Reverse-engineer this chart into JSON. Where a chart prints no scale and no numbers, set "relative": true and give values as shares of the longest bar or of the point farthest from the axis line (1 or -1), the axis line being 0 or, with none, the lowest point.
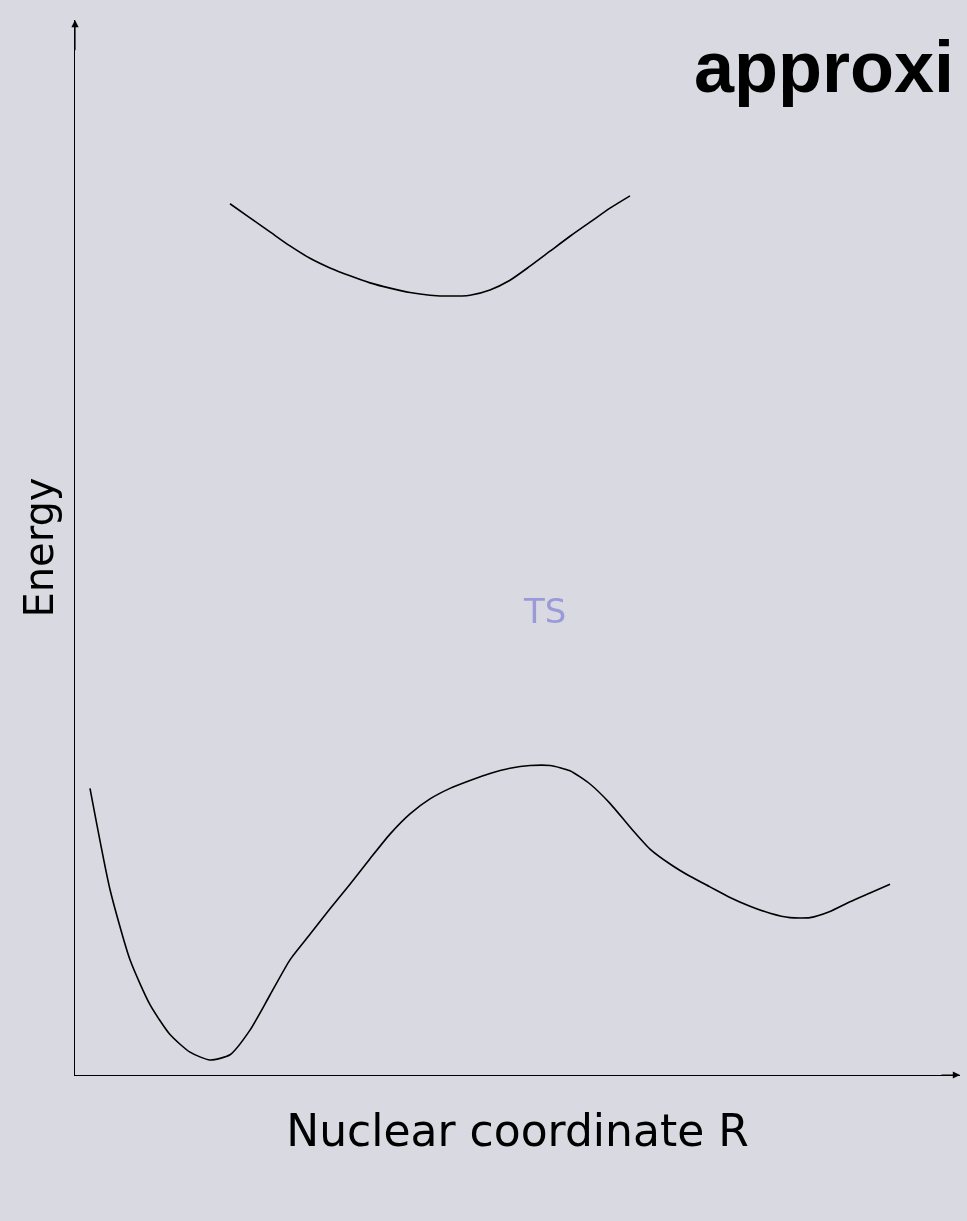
{
  "chart_data": {
    "type": "line",
    "title": "approxi",
    "xlabel": "Nuclear coordinate R",
    "ylabel": "Energy",
    "relative": true,
    "marker": "none",
    "line_style": "solid",
    "grid": false,
    "categories": [
      null,
      null,
      null,
      null,
      null,
      null,
      null,
      null,
      null,
      null,
      null,
      null,
      null,
      null,
      null,
      null,
      null,
      null,
      null,
      null,
      null,
      null,
      null,
      null,
      null,
      null,
      null,
      null,
      null,
      null,
      null,
      null,
      null,
      null,
      null,
      null,
      null,
      null,
      null,
      null,
      null
    ],
    "series": [
      {
        "color": "#000000",
        "values": [
          0.326,
          0.211,
          0.131,
          0.08,
          0.046,
          0.026,
          0.017,
          0.023,
          0.051,
          0.091,
          0.131,
          0.16,
          0.189,
          0.217,
          0.246,
          0.274,
          0.297,
          0.314,
          0.326,
          0.335,
          0.343,
          0.349,
          0.352,
          0.352,
          0.346,
          0.331,
          0.309,
          0.282,
          0.257,
          0.24,
          0.226,
          0.214,
          0.202,
          0.192,
          0.184,
          0.179,
          0.179,
          0.186,
          0.197,
          0.207,
          0.217
        ]
      },
      {
        "color": "#000000",
        "values": [
          null,
          null,
          null,
          null,
          null,
          null,
          null,
          0.991,
          0.975,
          0.959,
          0.943,
          0.929,
          0.918,
          0.909,
          0.901,
          0.895,
          0.89,
          0.887,
          0.886,
          0.887,
          0.893,
          0.904,
          0.92,
          0.937,
          0.954,
          0.97,
          0.986,
          1.0,
          null,
          null,
          null,
          null,
          null,
          null,
          null,
          null,
          null,
          null,
          null,
          null,
          null
        ]
      }
    ],
    "annotations": [
      "TS"
    ]
  }
}
